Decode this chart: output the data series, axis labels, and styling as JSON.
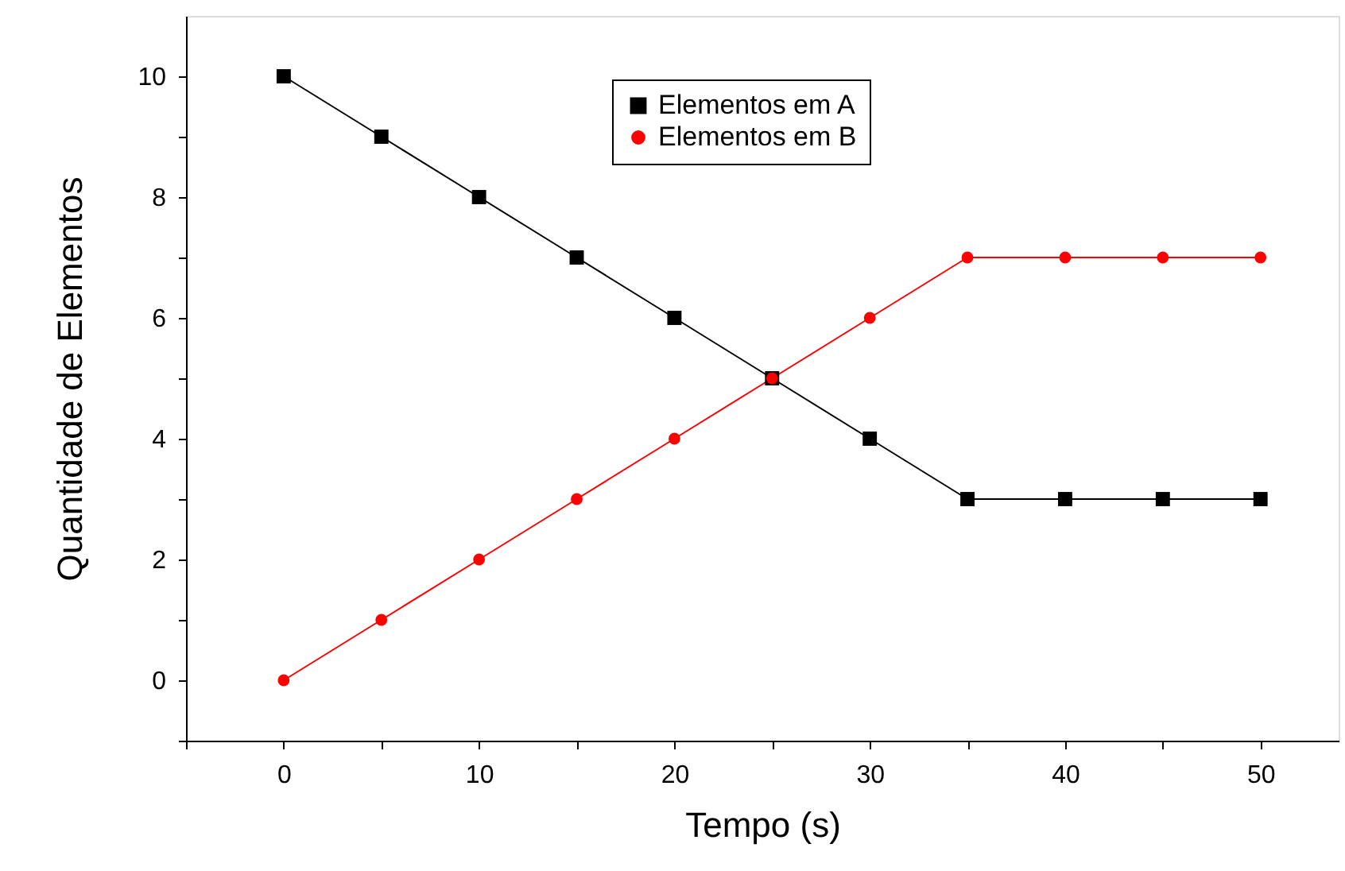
{
  "chart_data": {
    "type": "line",
    "xlabel": "Tempo (s)",
    "ylabel": "Quantidade de Elementos",
    "x": [
      0,
      5,
      10,
      15,
      20,
      25,
      30,
      35,
      40,
      45,
      50
    ],
    "series": [
      {
        "name": "Elementos em A",
        "color": "#000000",
        "marker": "square",
        "values": [
          10,
          9,
          8,
          7,
          6,
          5,
          4,
          3,
          3,
          3,
          3
        ]
      },
      {
        "name": "Elementos em B",
        "color": "#ff0000",
        "marker": "circle",
        "values": [
          0,
          1,
          2,
          3,
          4,
          5,
          6,
          7,
          7,
          7,
          7
        ]
      }
    ],
    "xlim": [
      -5,
      54
    ],
    "xticks": [
      {
        "value": -5,
        "label": null
      },
      0,
      {
        "value": 5,
        "label": null
      },
      10,
      {
        "value": 15,
        "label": null
      },
      20,
      {
        "value": 25,
        "label": null
      },
      30,
      {
        "value": 35,
        "label": null
      },
      40,
      {
        "value": 45,
        "label": null
      },
      50
    ],
    "ylim": [
      -1,
      11
    ],
    "yticks": [
      {
        "value": -1,
        "label": null
      },
      0,
      {
        "value": 1,
        "label": null
      },
      2,
      {
        "value": 3,
        "label": null
      },
      4,
      {
        "value": 5,
        "label": null
      },
      6,
      {
        "value": 7,
        "label": null
      },
      8,
      {
        "value": 9,
        "label": null
      },
      10
    ],
    "grid": false,
    "legend": "top",
    "line_style": "solid"
  }
}
